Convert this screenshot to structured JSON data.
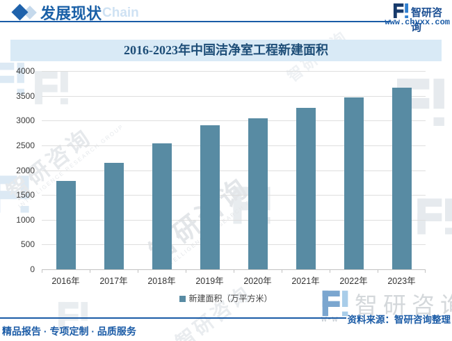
{
  "header": {
    "section_label": "发展现状",
    "watermark_text": "Chain",
    "brand_name": "智研咨询",
    "brand_url": "www.chyxx.com"
  },
  "chart_data": {
    "type": "bar",
    "title": "2016-2023年中国洁净室工程新建面积",
    "categories": [
      "2016年",
      "2017年",
      "2018年",
      "2019年",
      "2020年",
      "2021年",
      "2022年",
      "2023年"
    ],
    "values": [
      1780,
      2150,
      2545,
      2900,
      3045,
      3250,
      3465,
      3670
    ],
    "series_name": "新建面积（万平方米）",
    "xlabel": "",
    "ylabel": "",
    "ylim": [
      0,
      4000
    ],
    "ytick_step": 500,
    "grid": true,
    "legend_position": "bottom",
    "bar_color": "#588ba3"
  },
  "footer": {
    "source_label": "资料来源：智研咨询整理",
    "tagline": "精品报告 · 专项定制 · 品质服务"
  },
  "watermark": {
    "brand_name": "智研咨询",
    "brand_sub": "INTELLIGENCE RESEARCH GROUP",
    "url_fragment": "w-w"
  },
  "colors": {
    "accent_blue": "#1a5ba6",
    "bar": "#588ba3",
    "title_band_bg": "#d9eaf6",
    "title_text": "#1d4d77"
  }
}
